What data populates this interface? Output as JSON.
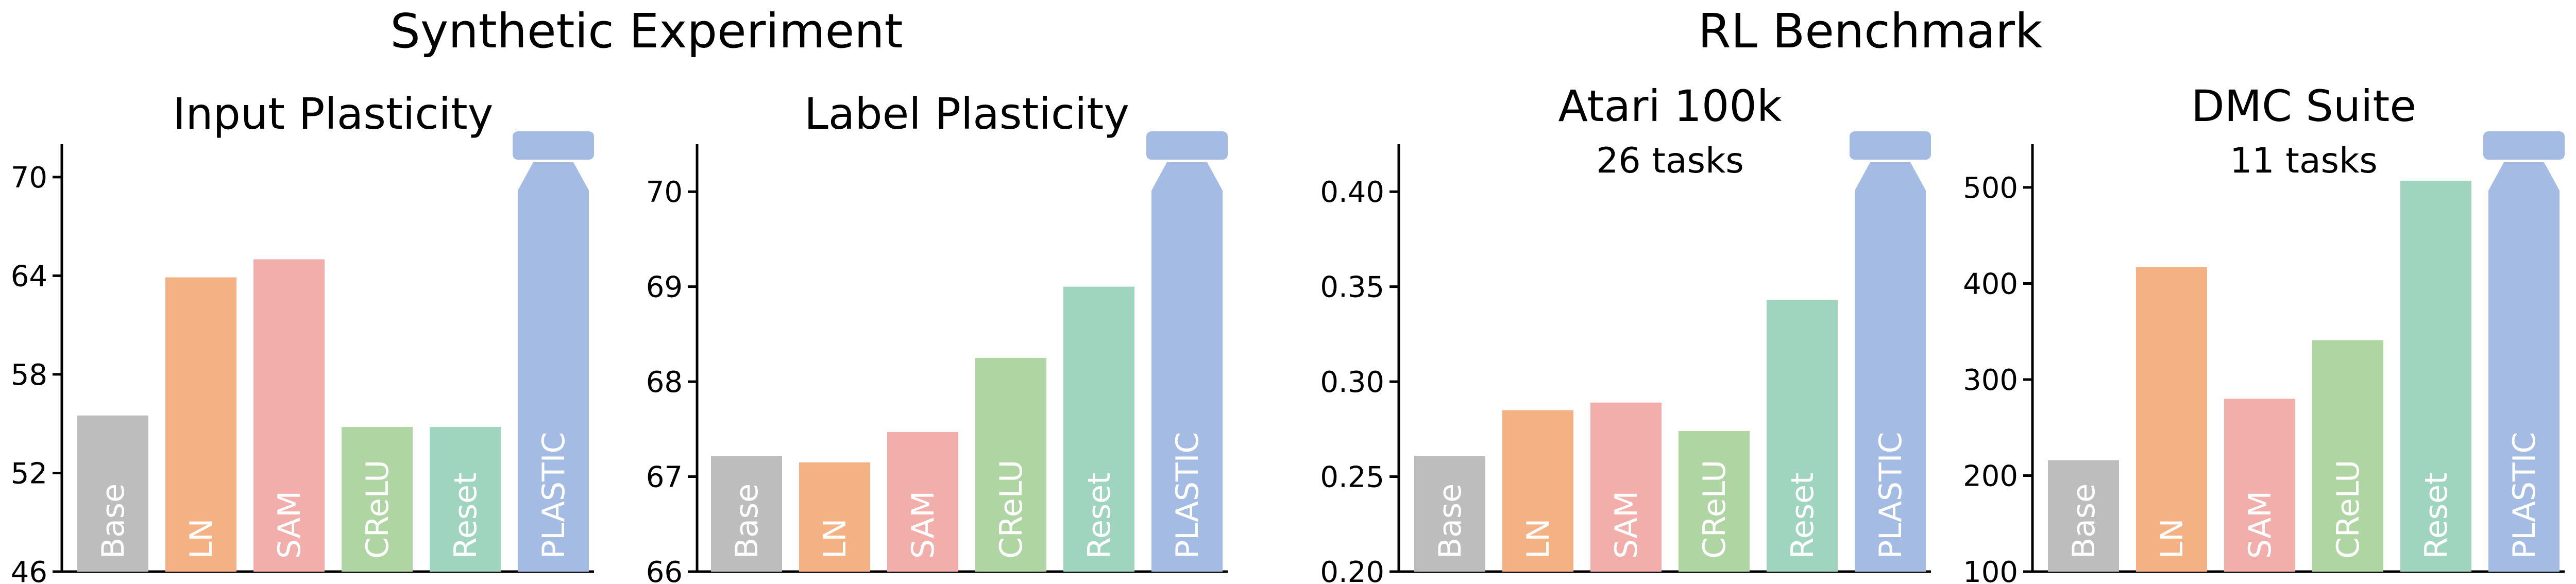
{
  "sections": [
    {
      "title": "Synthetic Experiment"
    },
    {
      "title": "RL Benchmark"
    }
  ],
  "chart_data": [
    {
      "type": "bar",
      "title": "Input Plasticity",
      "subtitle": "",
      "categories": [
        "Base",
        "LN",
        "SAM",
        "CReLU",
        "Reset",
        "PLASTIC"
      ],
      "values": [
        55.5,
        63.9,
        65.0,
        54.8,
        54.8,
        72.0
      ],
      "ylim": [
        46,
        72
      ],
      "yticks": [
        "46",
        "52",
        "58",
        "64",
        "70"
      ],
      "ytick_values": [
        46,
        52,
        58,
        64,
        70
      ],
      "colors": [
        "#bdbdbd",
        "#f3b184",
        "#f1aeab",
        "#afd5a2",
        "#9fd4bf",
        "#a4bce4"
      ],
      "broken_bar": "PLASTIC"
    },
    {
      "type": "bar",
      "title": "Label Plasticity",
      "subtitle": "",
      "categories": [
        "Base",
        "LN",
        "SAM",
        "CReLU",
        "Reset",
        "PLASTIC"
      ],
      "values": [
        67.22,
        67.15,
        67.47,
        68.25,
        69.0,
        70.5
      ],
      "ylim": [
        66,
        70.5
      ],
      "yticks": [
        "66",
        "67",
        "68",
        "69",
        "70"
      ],
      "ytick_values": [
        66,
        67,
        68,
        69,
        70
      ],
      "colors": [
        "#bdbdbd",
        "#f3b184",
        "#f1aeab",
        "#afd5a2",
        "#9fd4bf",
        "#a4bce4"
      ],
      "broken_bar": "PLASTIC"
    },
    {
      "type": "bar",
      "title": "Atari 100k",
      "subtitle": "26 tasks",
      "categories": [
        "Base",
        "LN",
        "SAM",
        "CReLU",
        "Reset",
        "PLASTIC"
      ],
      "values": [
        0.261,
        0.285,
        0.289,
        0.274,
        0.343,
        0.425
      ],
      "ylim": [
        0.2,
        0.425
      ],
      "yticks": [
        "0.20",
        "0.25",
        "0.30",
        "0.35",
        "0.40"
      ],
      "ytick_values": [
        0.2,
        0.25,
        0.3,
        0.35,
        0.4
      ],
      "colors": [
        "#bdbdbd",
        "#f3b184",
        "#f1aeab",
        "#afd5a2",
        "#9fd4bf",
        "#a4bce4"
      ],
      "broken_bar": "PLASTIC"
    },
    {
      "type": "bar",
      "title": "DMC Suite",
      "subtitle": "11 tasks",
      "categories": [
        "Base",
        "LN",
        "SAM",
        "CReLU",
        "Reset",
        "PLASTIC"
      ],
      "values": [
        216,
        417,
        280,
        341,
        507,
        545
      ],
      "ylim": [
        100,
        545
      ],
      "yticks": [
        "100",
        "200",
        "300",
        "400",
        "500"
      ],
      "ytick_values": [
        100,
        200,
        300,
        400,
        500
      ],
      "colors": [
        "#bdbdbd",
        "#f3b184",
        "#f1aeab",
        "#afd5a2",
        "#9fd4bf",
        "#a4bce4"
      ],
      "broken_bar": "PLASTIC"
    }
  ]
}
